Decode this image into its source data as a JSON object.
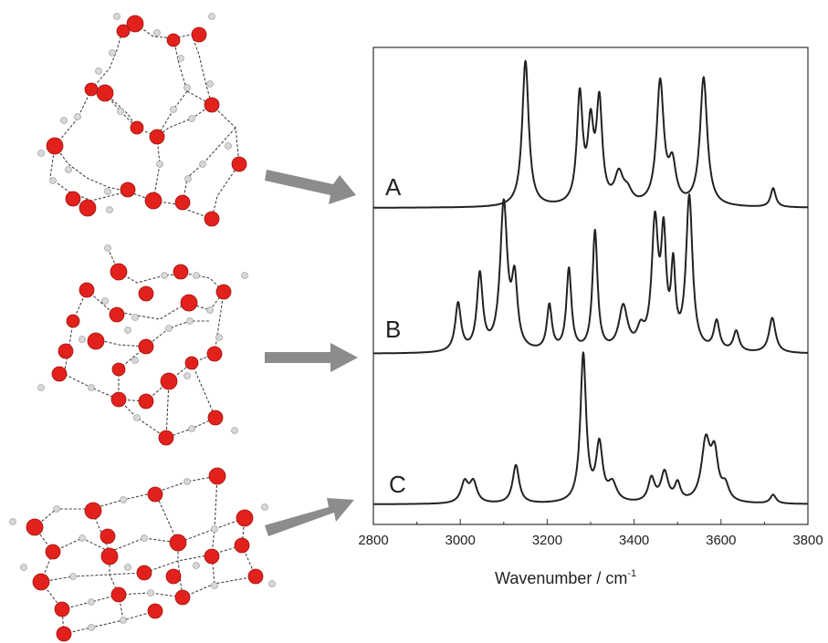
{
  "chart_data": {
    "type": "line",
    "xlabel": "Wavenumber / cm",
    "xlabel_superscript": "-1",
    "xlim": [
      2800,
      3800
    ],
    "x_ticks": [
      2800,
      3000,
      3200,
      3400,
      3600,
      3800
    ],
    "grid": false,
    "series": [
      {
        "name": "A",
        "peaks": [
          {
            "x": 3150,
            "h": 1.0,
            "w": 9
          },
          {
            "x": 3275,
            "h": 0.74,
            "w": 8
          },
          {
            "x": 3300,
            "h": 0.5,
            "w": 8
          },
          {
            "x": 3320,
            "h": 0.68,
            "w": 8
          },
          {
            "x": 3365,
            "h": 0.2,
            "w": 12
          },
          {
            "x": 3385,
            "h": 0.08,
            "w": 12
          },
          {
            "x": 3460,
            "h": 0.84,
            "w": 10
          },
          {
            "x": 3488,
            "h": 0.26,
            "w": 10
          },
          {
            "x": 3560,
            "h": 0.88,
            "w": 10
          },
          {
            "x": 3720,
            "h": 0.13,
            "w": 7
          }
        ]
      },
      {
        "name": "B",
        "peaks": [
          {
            "x": 2995,
            "h": 0.33,
            "w": 8
          },
          {
            "x": 3045,
            "h": 0.52,
            "w": 8
          },
          {
            "x": 3100,
            "h": 1.0,
            "w": 10
          },
          {
            "x": 3125,
            "h": 0.45,
            "w": 8
          },
          {
            "x": 3205,
            "h": 0.31,
            "w": 7
          },
          {
            "x": 3250,
            "h": 0.56,
            "w": 7
          },
          {
            "x": 3310,
            "h": 0.82,
            "w": 7
          },
          {
            "x": 3375,
            "h": 0.3,
            "w": 12
          },
          {
            "x": 3415,
            "h": 0.12,
            "w": 10
          },
          {
            "x": 3448,
            "h": 0.85,
            "w": 9
          },
          {
            "x": 3468,
            "h": 0.72,
            "w": 7
          },
          {
            "x": 3490,
            "h": 0.52,
            "w": 6
          },
          {
            "x": 3527,
            "h": 1.05,
            "w": 9
          },
          {
            "x": 3590,
            "h": 0.2,
            "w": 8
          },
          {
            "x": 3635,
            "h": 0.14,
            "w": 8
          },
          {
            "x": 3718,
            "h": 0.24,
            "w": 9
          }
        ]
      },
      {
        "name": "C",
        "peaks": [
          {
            "x": 3010,
            "h": 0.14,
            "w": 10
          },
          {
            "x": 3030,
            "h": 0.14,
            "w": 10
          },
          {
            "x": 3128,
            "h": 0.26,
            "w": 9
          },
          {
            "x": 3283,
            "h": 1.0,
            "w": 8
          },
          {
            "x": 3320,
            "h": 0.38,
            "w": 9
          },
          {
            "x": 3350,
            "h": 0.12,
            "w": 12
          },
          {
            "x": 3440,
            "h": 0.16,
            "w": 9
          },
          {
            "x": 3470,
            "h": 0.2,
            "w": 10
          },
          {
            "x": 3500,
            "h": 0.12,
            "w": 8
          },
          {
            "x": 3565,
            "h": 0.4,
            "w": 12
          },
          {
            "x": 3585,
            "h": 0.3,
            "w": 10
          },
          {
            "x": 3610,
            "h": 0.1,
            "w": 10
          },
          {
            "x": 3720,
            "h": 0.06,
            "w": 8
          }
        ]
      }
    ]
  },
  "colors": {
    "oxygen": "#e3211c",
    "hydrogen": "#d8d8d8",
    "arrow": "#8c8c8c",
    "line": "#222222"
  },
  "molecules": [
    {
      "icon": "water-cluster-cage-a"
    },
    {
      "icon": "water-cluster-cage-b"
    },
    {
      "icon": "water-cluster-prism-c"
    }
  ]
}
